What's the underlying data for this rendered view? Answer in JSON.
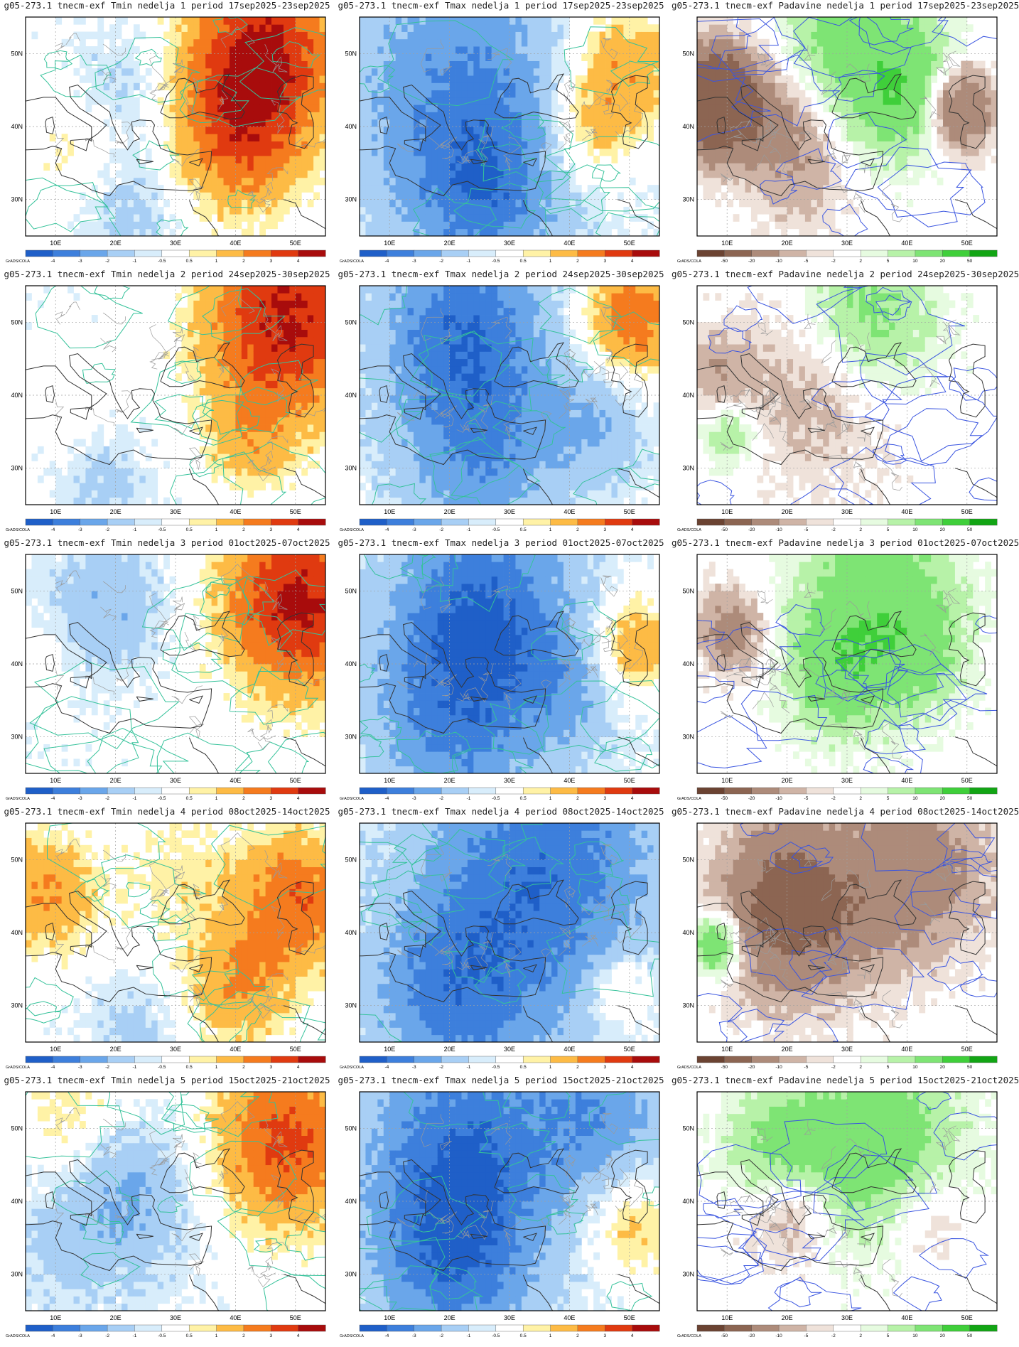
{
  "panels": [
    {
      "title": "g05-273.1 tnecm-exf Tmin nedelja 1 period 17sep2025-23sep2025",
      "variable": "Tmin"
    },
    {
      "title": "g05-273.1 tnecm-exf Tmax nedelja 1 period 17sep2025-23sep2025",
      "variable": "Tmax"
    },
    {
      "title": "g05-273.1 tnecm-exf Padavine nedelja 1 period 17sep2025-23sep2025",
      "variable": "Padavine"
    },
    {
      "title": "g05-273.1 tnecm-exf Tmin nedelja 2 period 24sep2025-30sep2025",
      "variable": "Tmin"
    },
    {
      "title": "g05-273.1 tnecm-exf Tmax nedelja 2 period 24sep2025-30sep2025",
      "variable": "Tmax"
    },
    {
      "title": "g05-273.1 tnecm-exf Padavine nedelja 2 period 24sep2025-30sep2025",
      "variable": "Padavine"
    },
    {
      "title": "g05-273.1 tnecm-exf Tmin nedelja 3 period 01oct2025-07oct2025",
      "variable": "Tmin"
    },
    {
      "title": "g05-273.1 tnecm-exf Tmax nedelja 3 period 01oct2025-07oct2025",
      "variable": "Tmax"
    },
    {
      "title": "g05-273.1 tnecm-exf Padavine nedelja 3 period 01oct2025-07oct2025",
      "variable": "Padavine"
    },
    {
      "title": "g05-273.1 tnecm-exf Tmin nedelja 4 period 08oct2025-14oct2025",
      "variable": "Tmin"
    },
    {
      "title": "g05-273.1 tnecm-exf Tmax nedelja 4 period 08oct2025-14oct2025",
      "variable": "Tmax"
    },
    {
      "title": "g05-273.1 tnecm-exf Padavine nedelja 4 period 08oct2025-14oct2025",
      "variable": "Padavine"
    },
    {
      "title": "g05-273.1 tnecm-exf Tmin nedelja 5 period 15oct2025-21oct2025",
      "variable": "Tmin"
    },
    {
      "title": "g05-273.1 tnecm-exf Tmax nedelja 5 period 15oct2025-21oct2025",
      "variable": "Tmax"
    },
    {
      "title": "g05-273.1 tnecm-exf Padavine nedelja 5 period 15oct2025-21oct2025",
      "variable": "Padavine"
    }
  ],
  "lon_labels": [
    "10E",
    "20E",
    "30E",
    "40E",
    "50E"
  ],
  "lat_labels": [
    "50N",
    "40N",
    "30N"
  ],
  "credit": "GrADS/COLA",
  "temp_legend": {
    "labels": [
      "-4",
      "-3",
      "-2",
      "-1",
      "-0.5",
      "0.5",
      "1",
      "2",
      "3",
      "4"
    ],
    "colors": [
      "#1f5fc8",
      "#3d7fdc",
      "#6aa6ea",
      "#a8cff5",
      "#d8edfb",
      "#ffffff",
      "#fff2a6",
      "#fdbb45",
      "#f57b1e",
      "#e03a10",
      "#a80c0c"
    ]
  },
  "precip_legend": {
    "labels": [
      "-50",
      "-20",
      "-10",
      "-5",
      "-2",
      "2",
      "5",
      "10",
      "20",
      "50"
    ],
    "colors": [
      "#6b4332",
      "#8c6552",
      "#ad8b7a",
      "#cfb4a6",
      "#efe2da",
      "#ffffff",
      "#e6fbe0",
      "#b7f2a8",
      "#7ee474",
      "#3fcf3a",
      "#12a514"
    ]
  }
}
